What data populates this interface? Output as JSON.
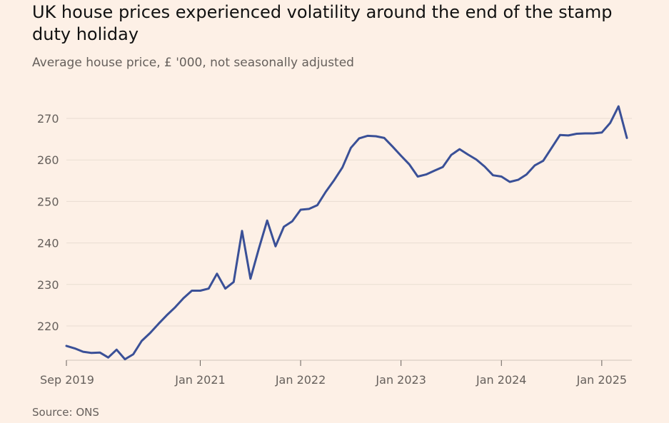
{
  "title": "UK house prices experienced volatility around the end of the stamp duty holiday",
  "subtitle": "Average house price, £ '000, not seasonally adjusted",
  "source": "Source: ONS",
  "colors": {
    "background": "#fdf0e6",
    "line": "#3a5097",
    "grid": "#e9ddd2",
    "axis": "#66605c",
    "text": "#111111",
    "muted": "#66605c"
  },
  "chart_data": {
    "type": "line",
    "title": "UK house prices experienced volatility around the end of the stamp duty holiday",
    "subtitle": "Average house price, £ '000, not seasonally adjusted",
    "xlabel": "",
    "ylabel": "Average house price, £ '000",
    "ylim": [
      210,
      275
    ],
    "yticks": [
      220,
      230,
      240,
      250,
      260,
      270
    ],
    "grid": true,
    "x_start": "Sep 2019",
    "x_ticks": [
      {
        "label": "Sep 2019",
        "index": 0
      },
      {
        "label": "Jan 2021",
        "index": 16
      },
      {
        "label": "Jan 2022",
        "index": 28
      },
      {
        "label": "Jan 2023",
        "index": 40
      },
      {
        "label": "Jan 2024",
        "index": 52
      },
      {
        "label": "Jan 2025",
        "index": 64
      }
    ],
    "series": [
      {
        "name": "Average house price",
        "values": [
          215.2,
          214.6,
          213.8,
          213.5,
          213.6,
          212.4,
          214.3,
          212.0,
          213.2,
          216.4,
          218.3,
          220.5,
          222.6,
          224.5,
          226.7,
          228.5,
          228.5,
          229.0,
          232.6,
          229.0,
          230.6,
          242.9,
          231.4,
          238.6,
          245.4,
          239.2,
          243.9,
          245.2,
          248.0,
          248.2,
          249.1,
          252.3,
          255.1,
          258.2,
          262.9,
          265.2,
          265.8,
          265.7,
          265.3,
          263.2,
          261.0,
          258.9,
          256.0,
          256.5,
          257.4,
          258.3,
          261.2,
          262.6,
          261.3,
          260.1,
          258.4,
          256.3,
          256.0,
          254.7,
          255.2,
          256.5,
          258.7,
          259.8,
          262.9,
          266.0,
          265.9,
          266.3,
          266.4,
          266.4,
          266.6,
          268.9,
          272.9,
          265.3
        ]
      }
    ]
  }
}
